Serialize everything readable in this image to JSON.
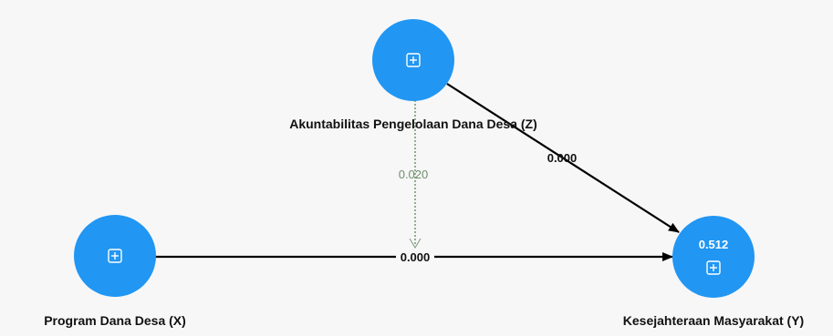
{
  "nodes": {
    "z": {
      "label": "Akuntabilitas Pengelolaan Dana Desa (Z)",
      "icon": "expand-plus-icon"
    },
    "x": {
      "label": "Program Dana Desa (X)",
      "icon": "expand-plus-icon"
    },
    "y": {
      "label": "Kesejahteraan Masyarakat (Y)",
      "icon": "expand-plus-icon",
      "r_squared": "0.512"
    }
  },
  "edges": {
    "z_to_y": {
      "value": "0.000"
    },
    "x_to_y": {
      "value": "0.000"
    },
    "z_moderation": {
      "value": "0.020"
    }
  },
  "colors": {
    "node_fill": "#2196f3",
    "edge": "#000000",
    "moderation_edge": "#7a9a7a",
    "background": "#f7f7f7"
  }
}
